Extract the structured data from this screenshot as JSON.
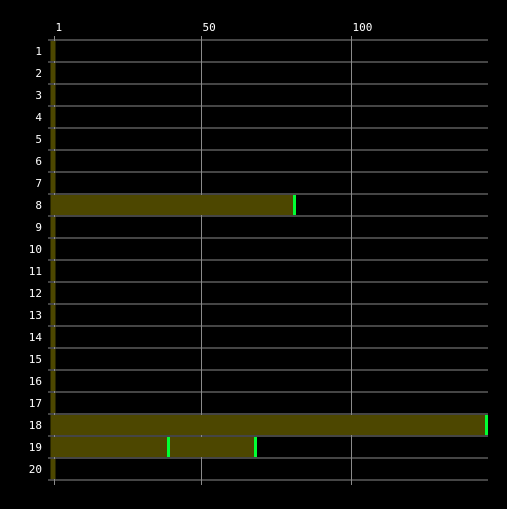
{
  "chart_data": {
    "type": "bar",
    "orientation": "horizontal",
    "title": "",
    "xlabel": "",
    "ylabel": "",
    "xlim": [
      0,
      146
    ],
    "x_ticks": [
      1,
      50,
      100
    ],
    "grid": true,
    "categories": [
      "1",
      "2",
      "3",
      "4",
      "5",
      "6",
      "7",
      "8",
      "9",
      "10",
      "11",
      "12",
      "13",
      "14",
      "15",
      "16",
      "17",
      "18",
      "19",
      "20"
    ],
    "values": [
      1,
      1,
      1,
      1,
      1,
      1,
      1,
      81,
      1,
      1,
      1,
      1,
      1,
      1,
      1,
      1,
      1,
      145,
      68,
      1
    ],
    "markers": [
      {
        "row": "8",
        "x": 81
      },
      {
        "row": "18",
        "x": 145
      },
      {
        "row": "19",
        "x": 39
      },
      {
        "row": "19",
        "x": 68
      }
    ],
    "colors": {
      "background": "#000000",
      "bar_fill": "#4d4700",
      "marker": "#00ff33",
      "grid": "#8a8a8a",
      "text": "#ffffff"
    }
  }
}
